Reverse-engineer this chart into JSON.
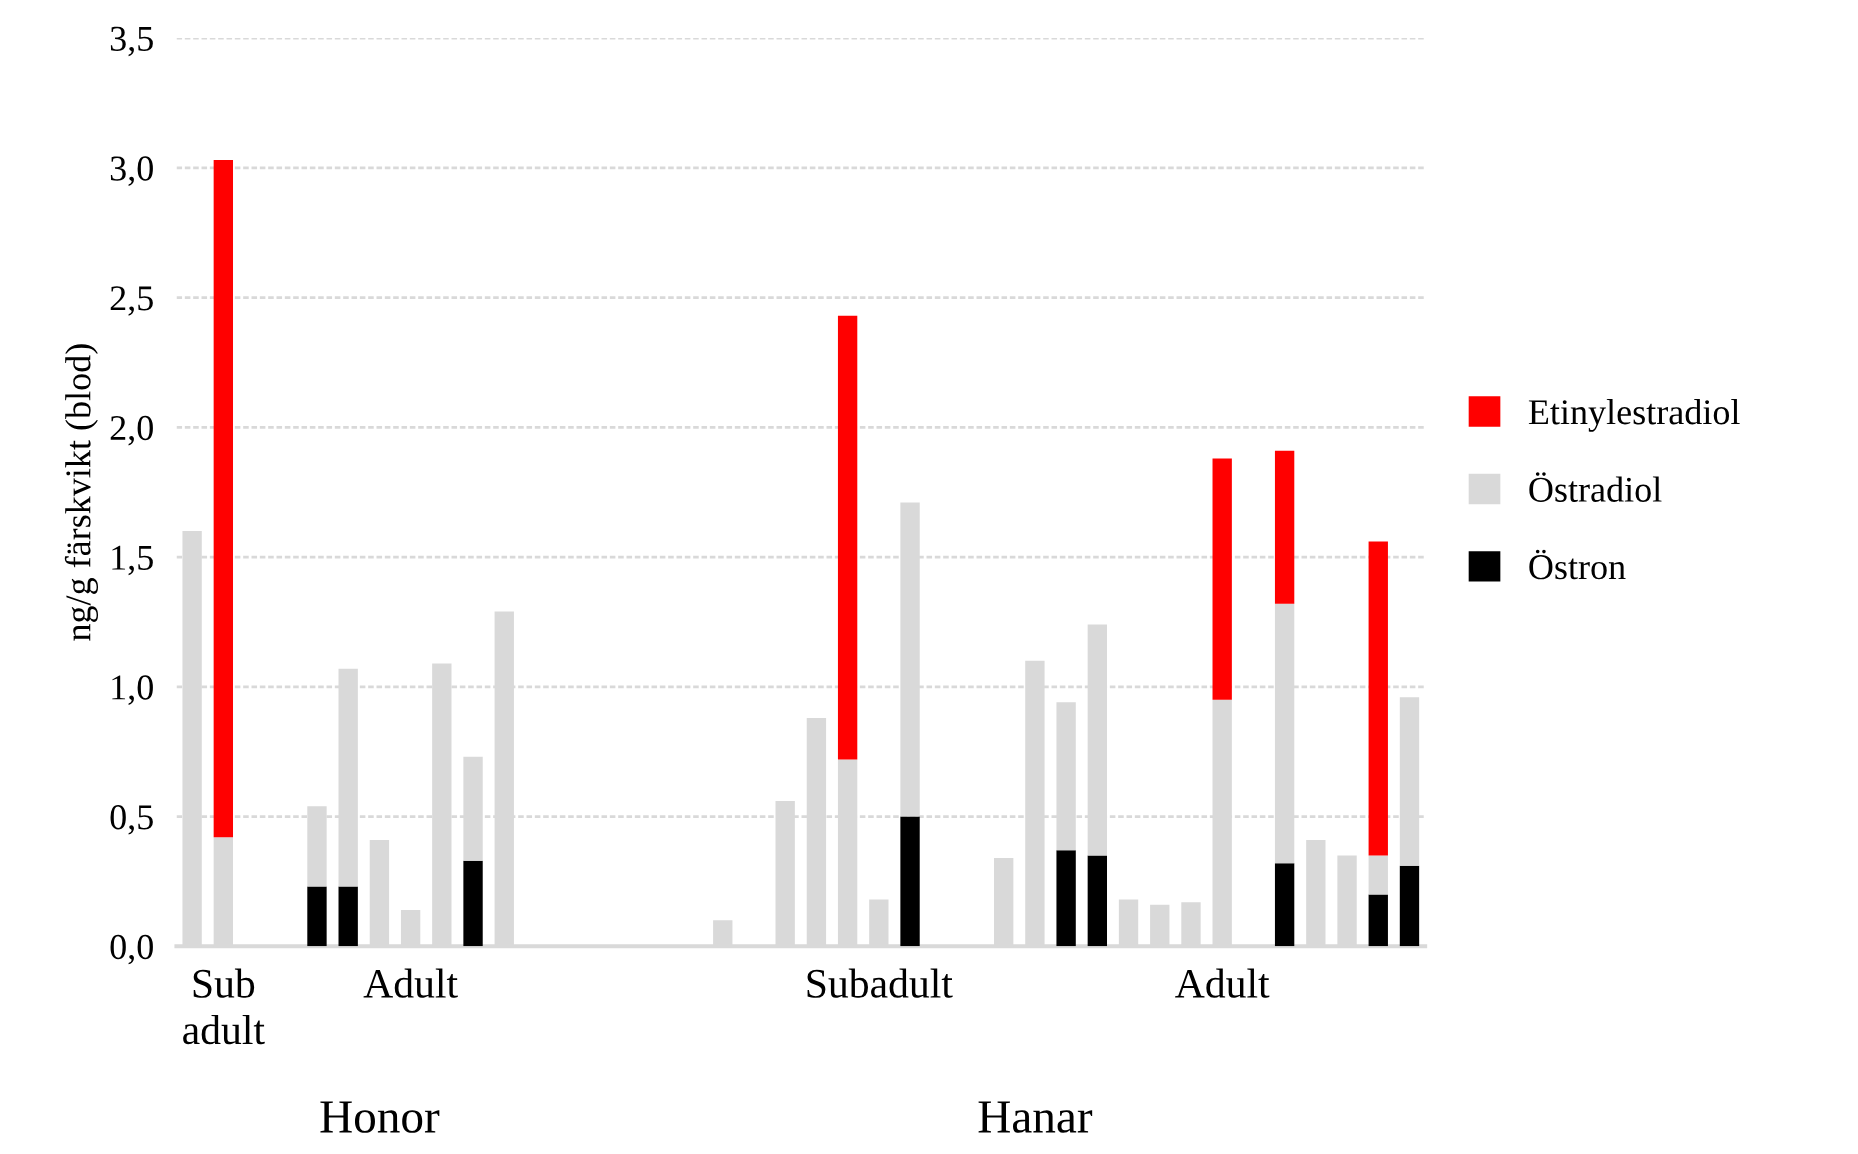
{
  "chart_data": {
    "type": "bar",
    "stacked": true,
    "ylabel": "ng/g färskvikt (blod)",
    "categories": [
      null,
      "Sub\nadult",
      null,
      null,
      null,
      null,
      null,
      "Adult",
      null,
      null,
      null,
      null,
      null,
      null,
      null,
      null,
      null,
      null,
      null,
      null,
      null,
      null,
      "Subadult",
      null,
      null,
      null,
      null,
      null,
      null,
      null,
      null,
      null,
      null,
      "Adult",
      null,
      null,
      null,
      null,
      null,
      null
    ],
    "series": [
      {
        "name": "Östron",
        "color": "#000000",
        "values": [
          null,
          null,
          null,
          null,
          0.23,
          0.23,
          null,
          null,
          null,
          0.33,
          null,
          null,
          null,
          null,
          null,
          null,
          null,
          null,
          null,
          null,
          null,
          null,
          null,
          0.5,
          null,
          null,
          null,
          null,
          0.37,
          0.35,
          null,
          null,
          null,
          null,
          null,
          0.32,
          null,
          null,
          0.2,
          0.31
        ]
      },
      {
        "name": "Östradiol",
        "color": "#d9d9d9",
        "values": [
          1.6,
          0.42,
          null,
          null,
          0.31,
          0.84,
          0.41,
          0.14,
          1.09,
          0.4,
          1.29,
          null,
          null,
          null,
          null,
          null,
          null,
          0.1,
          null,
          0.56,
          0.88,
          0.72,
          0.18,
          1.21,
          null,
          null,
          0.34,
          1.1,
          0.57,
          0.89,
          0.18,
          0.16,
          0.17,
          0.95,
          null,
          1.0,
          0.41,
          0.35,
          0.15,
          0.65
        ]
      },
      {
        "name": "Etinylestradiol",
        "color": "#ff0000",
        "values": [
          null,
          2.61,
          null,
          null,
          null,
          null,
          null,
          null,
          null,
          null,
          null,
          null,
          null,
          null,
          null,
          null,
          null,
          null,
          null,
          null,
          null,
          1.71,
          null,
          null,
          null,
          null,
          null,
          null,
          null,
          null,
          null,
          null,
          null,
          0.93,
          null,
          0.59,
          null,
          null,
          1.21,
          null
        ]
      }
    ],
    "ylim": [
      0,
      3.5
    ],
    "yticks": [
      {
        "value": 0,
        "label": "0,0"
      },
      {
        "value": 0.5,
        "label": "0,5"
      },
      {
        "value": 1,
        "label": "1,0"
      },
      {
        "value": 1.5,
        "label": "1,5"
      },
      {
        "value": 2,
        "label": "2,0"
      },
      {
        "value": 2.5,
        "label": "2,5"
      },
      {
        "value": 3,
        "label": "3,0"
      },
      {
        "value": 3.5,
        "label": "3,5"
      }
    ],
    "grid": "y",
    "legend": "right",
    "annotations": [
      "Honor",
      "Hanar"
    ]
  }
}
